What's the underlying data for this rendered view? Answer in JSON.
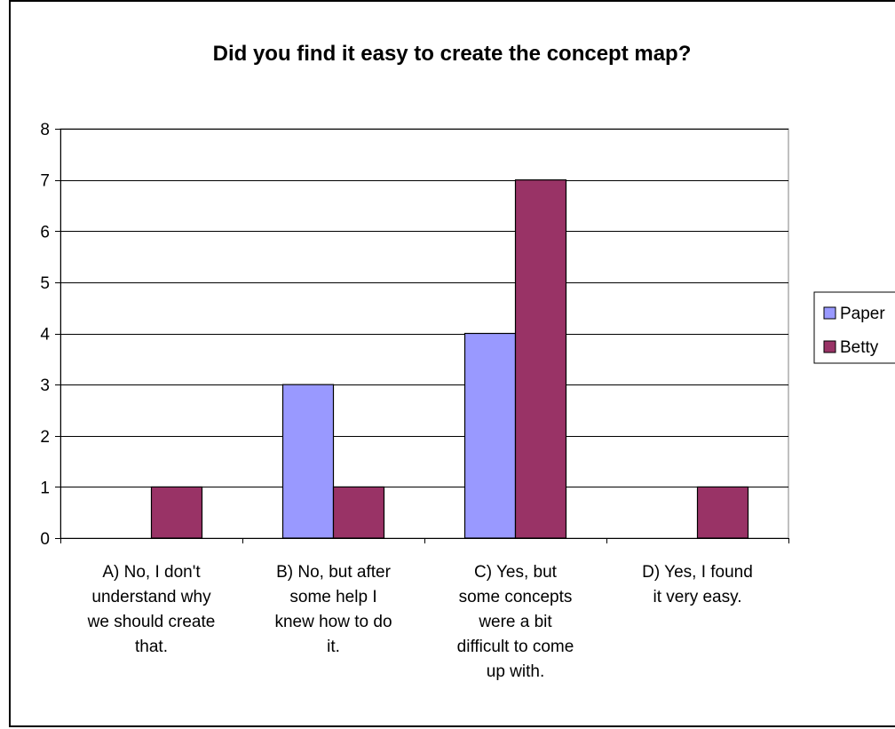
{
  "chart_data": {
    "type": "bar",
    "title": "Did you find it easy to create the concept map?",
    "categories": [
      [
        "A) No, I don't",
        "understand why",
        "we should create",
        "that."
      ],
      [
        "B) No, but after",
        "some help I",
        "knew how to do",
        "it."
      ],
      [
        "C) Yes, but",
        "some concepts",
        "were a bit",
        "difficult to come",
        "up with."
      ],
      [
        "D) Yes, I found",
        "it very easy."
      ]
    ],
    "series": [
      {
        "name": "Paper",
        "values": [
          0,
          3,
          4,
          0
        ],
        "color": "#9999ff"
      },
      {
        "name": "Betty",
        "values": [
          1,
          1,
          7,
          1
        ],
        "color": "#993366"
      }
    ],
    "ylim": [
      0,
      8
    ],
    "yticks": [
      0,
      1,
      2,
      3,
      4,
      5,
      6,
      7,
      8
    ],
    "grid": true,
    "legend_position": "right",
    "plot_background": "#ffffff",
    "gridline_color": "#000000"
  }
}
